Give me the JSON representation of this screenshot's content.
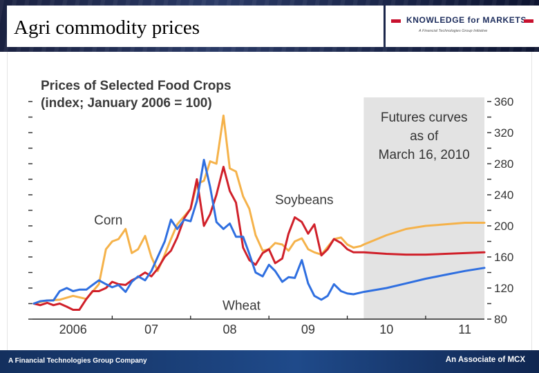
{
  "slide": {
    "title": "Agri commodity prices",
    "brand_name": "KNOWLEDGE for MARKETS",
    "brand_tagline": "A Financial Technologies Group Initiative",
    "footer_left": "A Financial Technologies Group Company",
    "footer_right": "An Associate of MCX"
  },
  "colors": {
    "corn": "#f5b24a",
    "soybeans": "#d0202a",
    "wheat": "#2f6fe0",
    "futures_band": "#e3e3e3"
  },
  "chart_data": {
    "type": "line",
    "title": "Prices of Selected Food Crops",
    "subtitle": "(index; January 2006 = 100)",
    "x_unit": "year (decimal)",
    "xlim": [
      2006.0,
      2011.75
    ],
    "ylim": [
      80,
      360
    ],
    "y_ticks": [
      80,
      100,
      120,
      140,
      160,
      180,
      200,
      220,
      240,
      260,
      280,
      300,
      320,
      340,
      360
    ],
    "y_tick_labels": [
      "80",
      "120",
      "160",
      "200",
      "240",
      "280",
      "320",
      "360"
    ],
    "y_tick_label_values": [
      80,
      120,
      160,
      200,
      240,
      280,
      320,
      360
    ],
    "x_tick_labels": [
      {
        "x": 2006.5,
        "label": "2006"
      },
      {
        "x": 2007.5,
        "label": "07"
      },
      {
        "x": 2008.5,
        "label": "08"
      },
      {
        "x": 2009.5,
        "label": "09"
      },
      {
        "x": 2010.5,
        "label": "10"
      },
      {
        "x": 2011.5,
        "label": "11"
      }
    ],
    "futures_region": {
      "x_start": 2010.21,
      "x_end": 2011.75,
      "label": [
        "Futures curves",
        "as of",
        "March 16, 2010"
      ]
    },
    "series": [
      {
        "name": "Corn",
        "color_key": "corn",
        "points": [
          [
            2006.0,
            100
          ],
          [
            2006.17,
            104
          ],
          [
            2006.33,
            105
          ],
          [
            2006.5,
            110
          ],
          [
            2006.67,
            106
          ],
          [
            2006.83,
            125
          ],
          [
            2006.92,
            170
          ],
          [
            2007.0,
            180
          ],
          [
            2007.08,
            183
          ],
          [
            2007.17,
            196
          ],
          [
            2007.25,
            165
          ],
          [
            2007.33,
            170
          ],
          [
            2007.42,
            187
          ],
          [
            2007.5,
            160
          ],
          [
            2007.58,
            142
          ],
          [
            2007.67,
            163
          ],
          [
            2007.75,
            183
          ],
          [
            2007.83,
            202
          ],
          [
            2008.0,
            222
          ],
          [
            2008.08,
            254
          ],
          [
            2008.17,
            258
          ],
          [
            2008.25,
            283
          ],
          [
            2008.33,
            280
          ],
          [
            2008.42,
            342
          ],
          [
            2008.5,
            274
          ],
          [
            2008.58,
            270
          ],
          [
            2008.67,
            238
          ],
          [
            2008.75,
            222
          ],
          [
            2008.83,
            188
          ],
          [
            2008.92,
            168
          ],
          [
            2009.0,
            170
          ],
          [
            2009.08,
            178
          ],
          [
            2009.17,
            176
          ],
          [
            2009.25,
            168
          ],
          [
            2009.33,
            180
          ],
          [
            2009.42,
            184
          ],
          [
            2009.5,
            170
          ],
          [
            2009.58,
            166
          ],
          [
            2009.67,
            163
          ],
          [
            2009.75,
            173
          ],
          [
            2009.83,
            183
          ],
          [
            2009.92,
            185
          ],
          [
            2010.0,
            176
          ],
          [
            2010.08,
            172
          ],
          [
            2010.17,
            174
          ],
          [
            2010.21,
            176
          ],
          [
            2010.5,
            188
          ],
          [
            2010.75,
            196
          ],
          [
            2011.0,
            200
          ],
          [
            2011.25,
            202
          ],
          [
            2011.5,
            204
          ],
          [
            2011.75,
            204
          ]
        ]
      },
      {
        "name": "Soybeans",
        "color_key": "soybeans",
        "points": [
          [
            2006.0,
            100
          ],
          [
            2006.08,
            98
          ],
          [
            2006.17,
            101
          ],
          [
            2006.25,
            98
          ],
          [
            2006.33,
            100
          ],
          [
            2006.42,
            96
          ],
          [
            2006.5,
            92
          ],
          [
            2006.58,
            92
          ],
          [
            2006.67,
            106
          ],
          [
            2006.75,
            116
          ],
          [
            2006.83,
            116
          ],
          [
            2006.92,
            120
          ],
          [
            2007.0,
            128
          ],
          [
            2007.08,
            125
          ],
          [
            2007.17,
            124
          ],
          [
            2007.25,
            130
          ],
          [
            2007.33,
            134
          ],
          [
            2007.42,
            140
          ],
          [
            2007.5,
            135
          ],
          [
            2007.58,
            145
          ],
          [
            2007.67,
            160
          ],
          [
            2007.75,
            168
          ],
          [
            2007.83,
            185
          ],
          [
            2007.92,
            210
          ],
          [
            2008.0,
            222
          ],
          [
            2008.08,
            260
          ],
          [
            2008.17,
            200
          ],
          [
            2008.25,
            215
          ],
          [
            2008.33,
            240
          ],
          [
            2008.42,
            276
          ],
          [
            2008.5,
            245
          ],
          [
            2008.58,
            230
          ],
          [
            2008.67,
            172
          ],
          [
            2008.75,
            156
          ],
          [
            2008.83,
            150
          ],
          [
            2008.92,
            165
          ],
          [
            2009.0,
            170
          ],
          [
            2009.08,
            152
          ],
          [
            2009.17,
            158
          ],
          [
            2009.25,
            190
          ],
          [
            2009.33,
            211
          ],
          [
            2009.42,
            205
          ],
          [
            2009.5,
            190
          ],
          [
            2009.58,
            202
          ],
          [
            2009.67,
            162
          ],
          [
            2009.75,
            170
          ],
          [
            2009.83,
            183
          ],
          [
            2009.92,
            178
          ],
          [
            2010.0,
            170
          ],
          [
            2010.08,
            166
          ],
          [
            2010.21,
            166
          ],
          [
            2010.5,
            164
          ],
          [
            2010.75,
            163
          ],
          [
            2011.0,
            163
          ],
          [
            2011.25,
            164
          ],
          [
            2011.5,
            165
          ],
          [
            2011.75,
            166
          ]
        ]
      },
      {
        "name": "Wheat",
        "color_key": "wheat",
        "points": [
          [
            2006.0,
            100
          ],
          [
            2006.08,
            103
          ],
          [
            2006.17,
            104
          ],
          [
            2006.25,
            104
          ],
          [
            2006.33,
            116
          ],
          [
            2006.42,
            120
          ],
          [
            2006.5,
            116
          ],
          [
            2006.58,
            118
          ],
          [
            2006.67,
            118
          ],
          [
            2006.75,
            124
          ],
          [
            2006.83,
            130
          ],
          [
            2006.92,
            125
          ],
          [
            2007.0,
            121
          ],
          [
            2007.08,
            124
          ],
          [
            2007.17,
            115
          ],
          [
            2007.25,
            128
          ],
          [
            2007.33,
            135
          ],
          [
            2007.42,
            130
          ],
          [
            2007.5,
            142
          ],
          [
            2007.58,
            160
          ],
          [
            2007.67,
            180
          ],
          [
            2007.75,
            208
          ],
          [
            2007.83,
            196
          ],
          [
            2007.92,
            208
          ],
          [
            2008.0,
            206
          ],
          [
            2008.08,
            232
          ],
          [
            2008.17,
            285
          ],
          [
            2008.25,
            250
          ],
          [
            2008.33,
            205
          ],
          [
            2008.42,
            196
          ],
          [
            2008.5,
            203
          ],
          [
            2008.58,
            186
          ],
          [
            2008.67,
            186
          ],
          [
            2008.75,
            164
          ],
          [
            2008.83,
            140
          ],
          [
            2008.92,
            135
          ],
          [
            2009.0,
            150
          ],
          [
            2009.08,
            142
          ],
          [
            2009.17,
            128
          ],
          [
            2009.25,
            134
          ],
          [
            2009.33,
            133
          ],
          [
            2009.42,
            156
          ],
          [
            2009.5,
            126
          ],
          [
            2009.58,
            110
          ],
          [
            2009.67,
            105
          ],
          [
            2009.75,
            110
          ],
          [
            2009.83,
            125
          ],
          [
            2009.92,
            116
          ],
          [
            2010.0,
            113
          ],
          [
            2010.08,
            112
          ],
          [
            2010.21,
            115
          ],
          [
            2010.5,
            120
          ],
          [
            2010.75,
            126
          ],
          [
            2011.0,
            132
          ],
          [
            2011.25,
            137
          ],
          [
            2011.5,
            142
          ],
          [
            2011.75,
            146
          ]
        ]
      }
    ],
    "annotations": [
      {
        "text": "Corn",
        "x": 2006.95,
        "y": 202
      },
      {
        "text": "Soybeans",
        "x": 2009.45,
        "y": 228
      },
      {
        "text": "Wheat",
        "x": 2008.65,
        "y": 92
      }
    ]
  }
}
